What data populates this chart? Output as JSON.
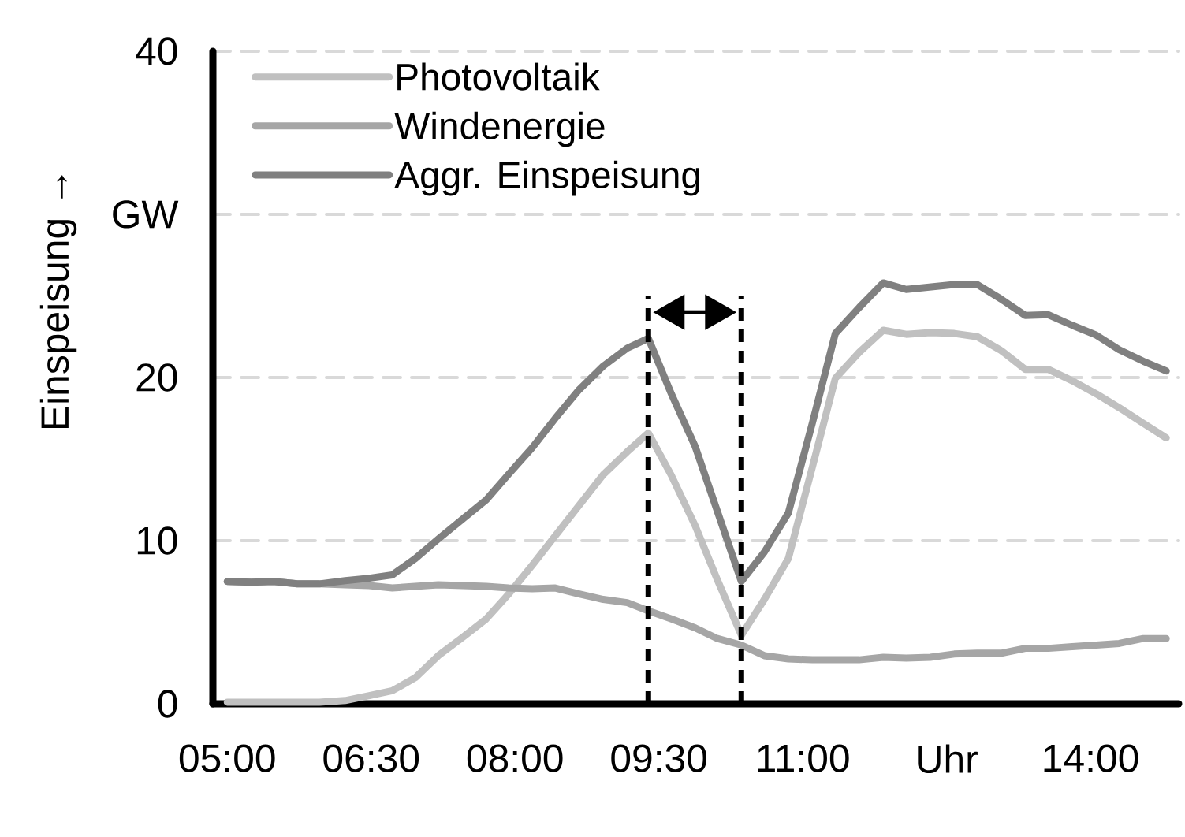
{
  "chart_data": {
    "type": "line",
    "ylabel": "Einspeisung →",
    "x": [
      5.0,
      5.25,
      5.48,
      5.73,
      5.96,
      6.23,
      6.48,
      6.72,
      6.96,
      7.2,
      7.46,
      7.7,
      7.93,
      8.18,
      8.42,
      8.66,
      8.92,
      9.17,
      9.39,
      9.63,
      9.88,
      10.11,
      10.36,
      10.6,
      10.85,
      11.1,
      11.34,
      11.59,
      11.84,
      12.08,
      12.33,
      12.58,
      12.82,
      13.07,
      13.32,
      13.56,
      13.81,
      14.06,
      14.3,
      14.55,
      14.79
    ],
    "series": [
      {
        "name": "Photovoltaik",
        "color": "#c0c0c0",
        "values": [
          0.1,
          0.1,
          0.1,
          0.1,
          0.1,
          0.2,
          0.5,
          0.8,
          1.6,
          2.95,
          4.1,
          5.2,
          6.7,
          8.5,
          10.3,
          12.1,
          14.05,
          15.45,
          16.6,
          14.0,
          10.9,
          7.6,
          4.2,
          6.4,
          8.9,
          14.5,
          19.95,
          21.55,
          22.9,
          22.65,
          22.75,
          22.7,
          22.5,
          21.65,
          20.5,
          20.5,
          19.8,
          19.0,
          18.15,
          17.2,
          16.3
        ]
      },
      {
        "name": "Windenergie",
        "color": "#a6a6a6",
        "values": [
          7.5,
          7.45,
          7.5,
          7.35,
          7.35,
          7.3,
          7.25,
          7.1,
          7.2,
          7.3,
          7.25,
          7.2,
          7.1,
          7.05,
          7.1,
          6.75,
          6.4,
          6.2,
          5.7,
          5.2,
          4.65,
          4.0,
          3.6,
          2.95,
          2.75,
          2.7,
          2.7,
          2.7,
          2.85,
          2.8,
          2.85,
          3.05,
          3.1,
          3.1,
          3.4,
          3.4,
          3.5,
          3.6,
          3.7,
          4.0,
          4.0
        ]
      },
      {
        "name": "Aggr. Einspeisung",
        "color": "#808080",
        "values": [
          7.5,
          7.45,
          7.5,
          7.35,
          7.35,
          7.55,
          7.7,
          7.9,
          8.9,
          10.1,
          11.35,
          12.5,
          14.05,
          15.7,
          17.5,
          19.2,
          20.7,
          21.8,
          22.4,
          19.0,
          15.75,
          11.8,
          7.5,
          9.3,
          11.7,
          17.2,
          22.7,
          24.3,
          25.8,
          25.4,
          25.55,
          25.7,
          25.7,
          24.8,
          23.8,
          23.85,
          23.2,
          22.6,
          21.7,
          21.0,
          20.4
        ]
      }
    ],
    "xlim": [
      4.85,
      14.92
    ],
    "xticks": [
      {
        "value": 5,
        "label": "05:00"
      },
      {
        "value": 6.5,
        "label": "06:30"
      },
      {
        "value": 8,
        "label": "08:00"
      },
      {
        "value": 9.5,
        "label": "09:30"
      },
      {
        "value": 11,
        "label": "11:00"
      },
      {
        "value": 12.5,
        "label": "Uhr"
      },
      {
        "value": 14,
        "label": "14:00"
      }
    ],
    "ylim": [
      0,
      40
    ],
    "yticks": [
      0,
      10,
      20,
      {
        "value": 30,
        "label": "GW"
      },
      40
    ],
    "ref_lines": [
      {
        "axis": "x",
        "value": 9.39,
        "color": "#000000",
        "line_style": "dashed"
      },
      {
        "axis": "x",
        "value": 10.36,
        "color": "#000000",
        "line_style": "dashed"
      }
    ],
    "grid": "y",
    "legend": "top left",
    "marker": "none",
    "line_style": "solid"
  }
}
